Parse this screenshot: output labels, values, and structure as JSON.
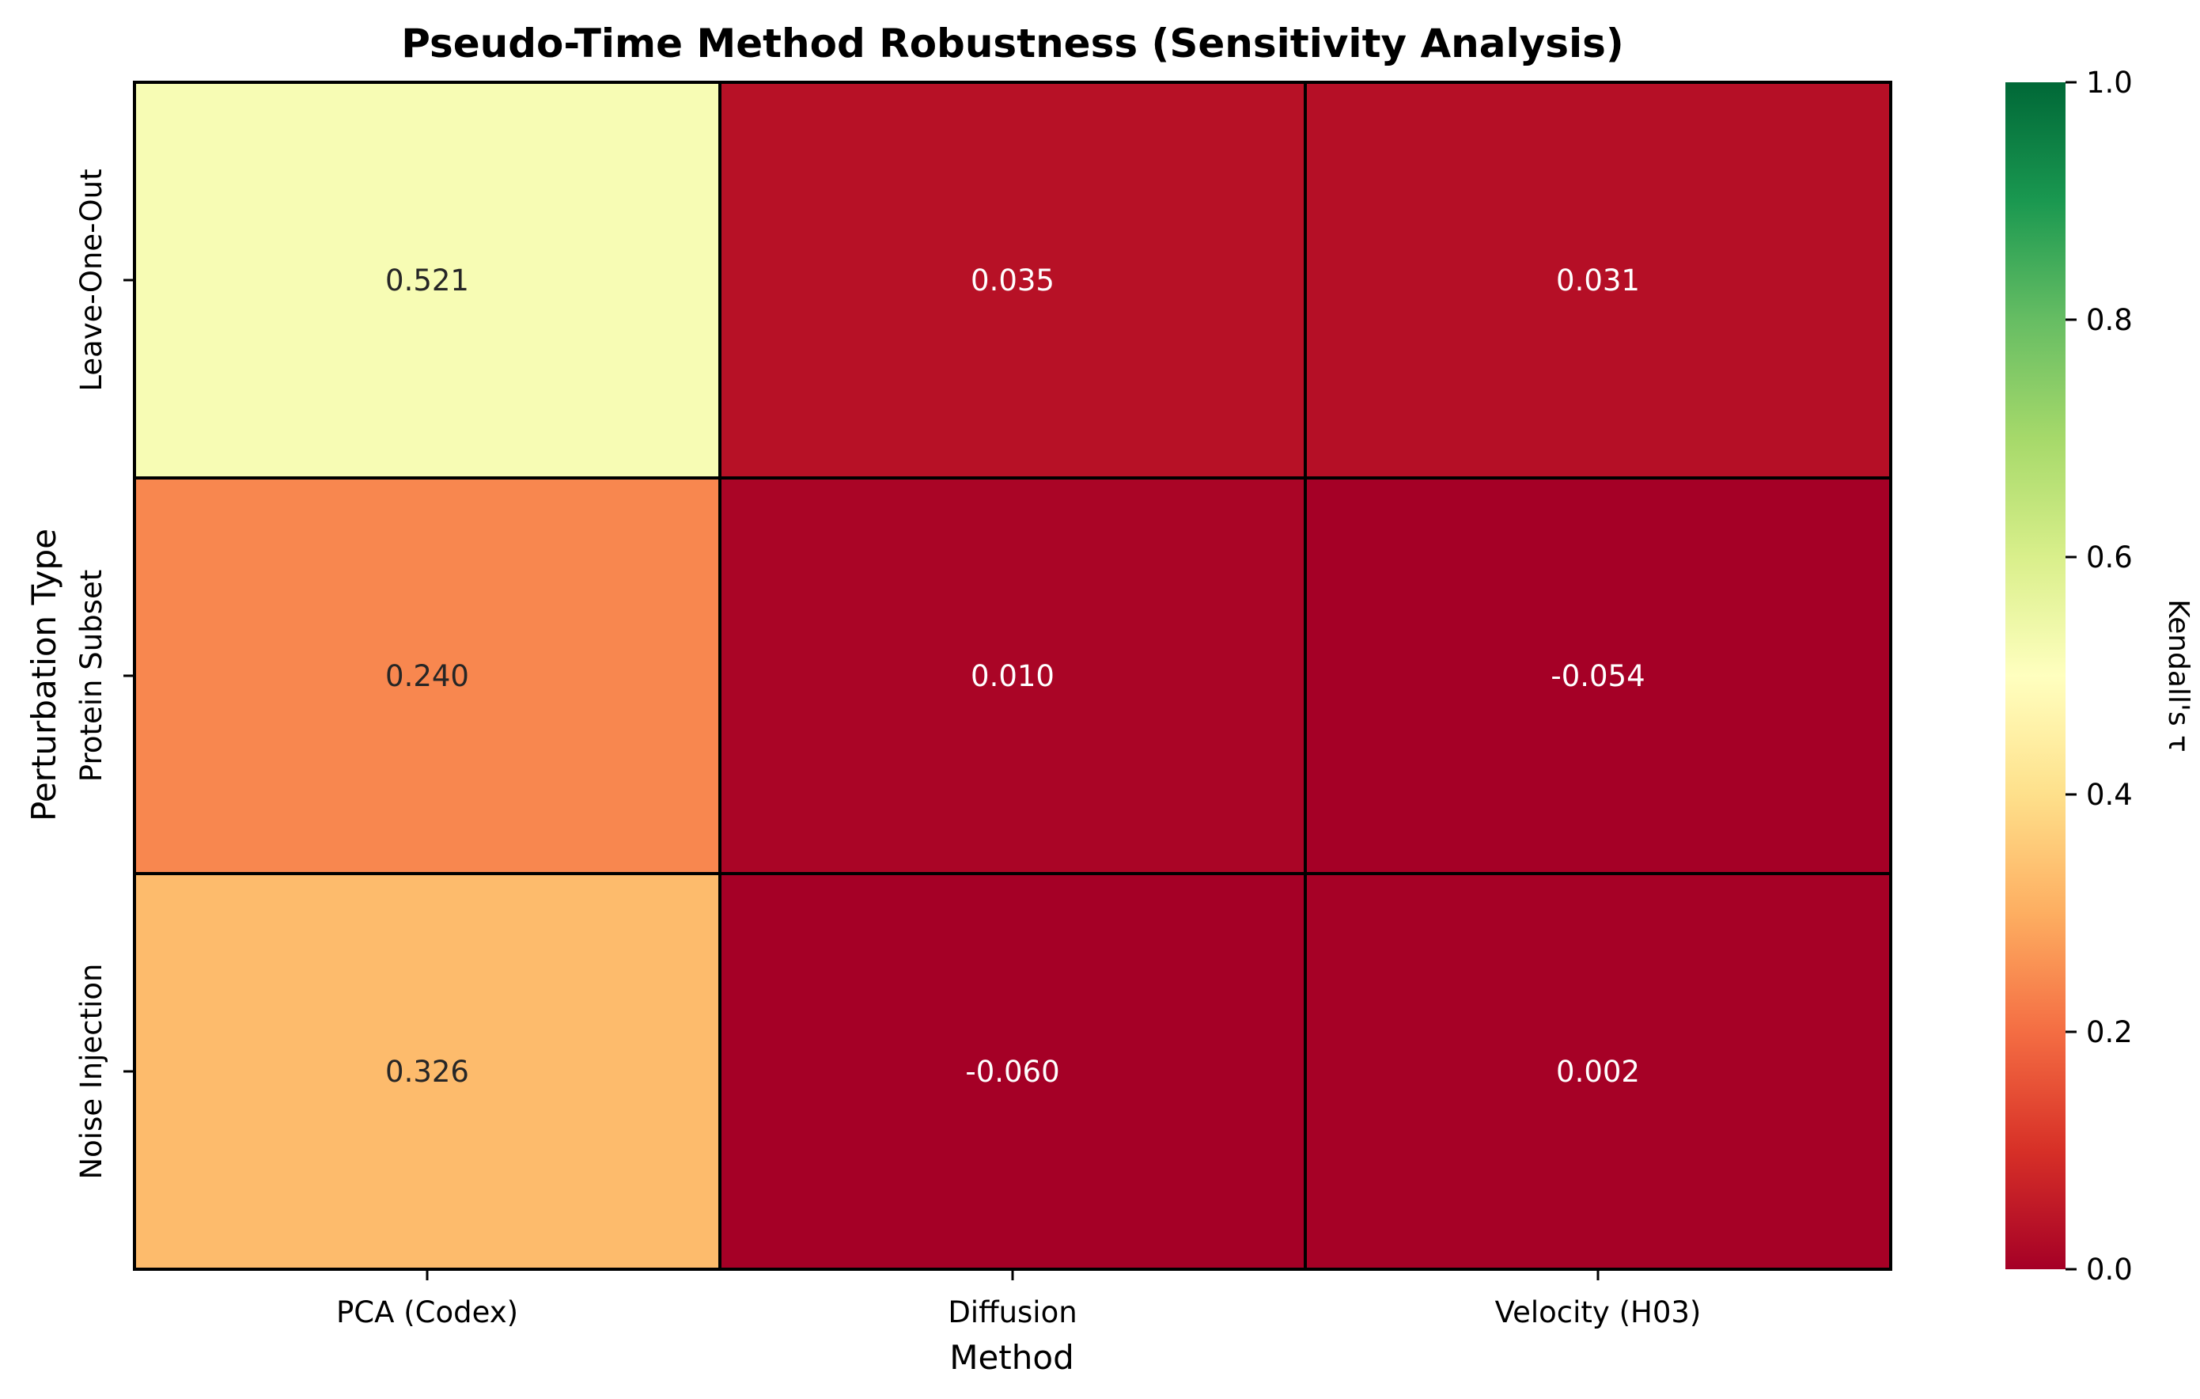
{
  "chart_data": {
    "type": "heatmap",
    "title": "Pseudo-Time Method Robustness (Sensitivity Analysis)",
    "xlabel": "Method",
    "ylabel": "Perturbation Type",
    "x_categories": [
      "PCA (Codex)",
      "Diffusion",
      "Velocity (H03)"
    ],
    "y_categories": [
      "Leave-One-Out",
      "Protein Subset",
      "Noise Injection"
    ],
    "values": [
      [
        0.521,
        0.035,
        0.031
      ],
      [
        0.24,
        0.01,
        -0.054
      ],
      [
        0.326,
        -0.06,
        0.002
      ]
    ],
    "cell_labels": [
      [
        "0.521",
        "0.035",
        "0.031"
      ],
      [
        "0.240",
        "0.010",
        "-0.054"
      ],
      [
        "0.326",
        "-0.060",
        "0.002"
      ]
    ],
    "colormap": "RdYlGn",
    "vmin": 0.0,
    "vmax": 1.0,
    "colorbar": {
      "label": "Kendall's τ",
      "ticks": [
        0.0,
        0.2,
        0.4,
        0.6,
        0.8,
        1.0
      ],
      "tick_labels": [
        "0.0",
        "0.2",
        "0.4",
        "0.6",
        "0.8",
        "1.0"
      ]
    },
    "cell_border_color": "#000000",
    "grid": false
  }
}
